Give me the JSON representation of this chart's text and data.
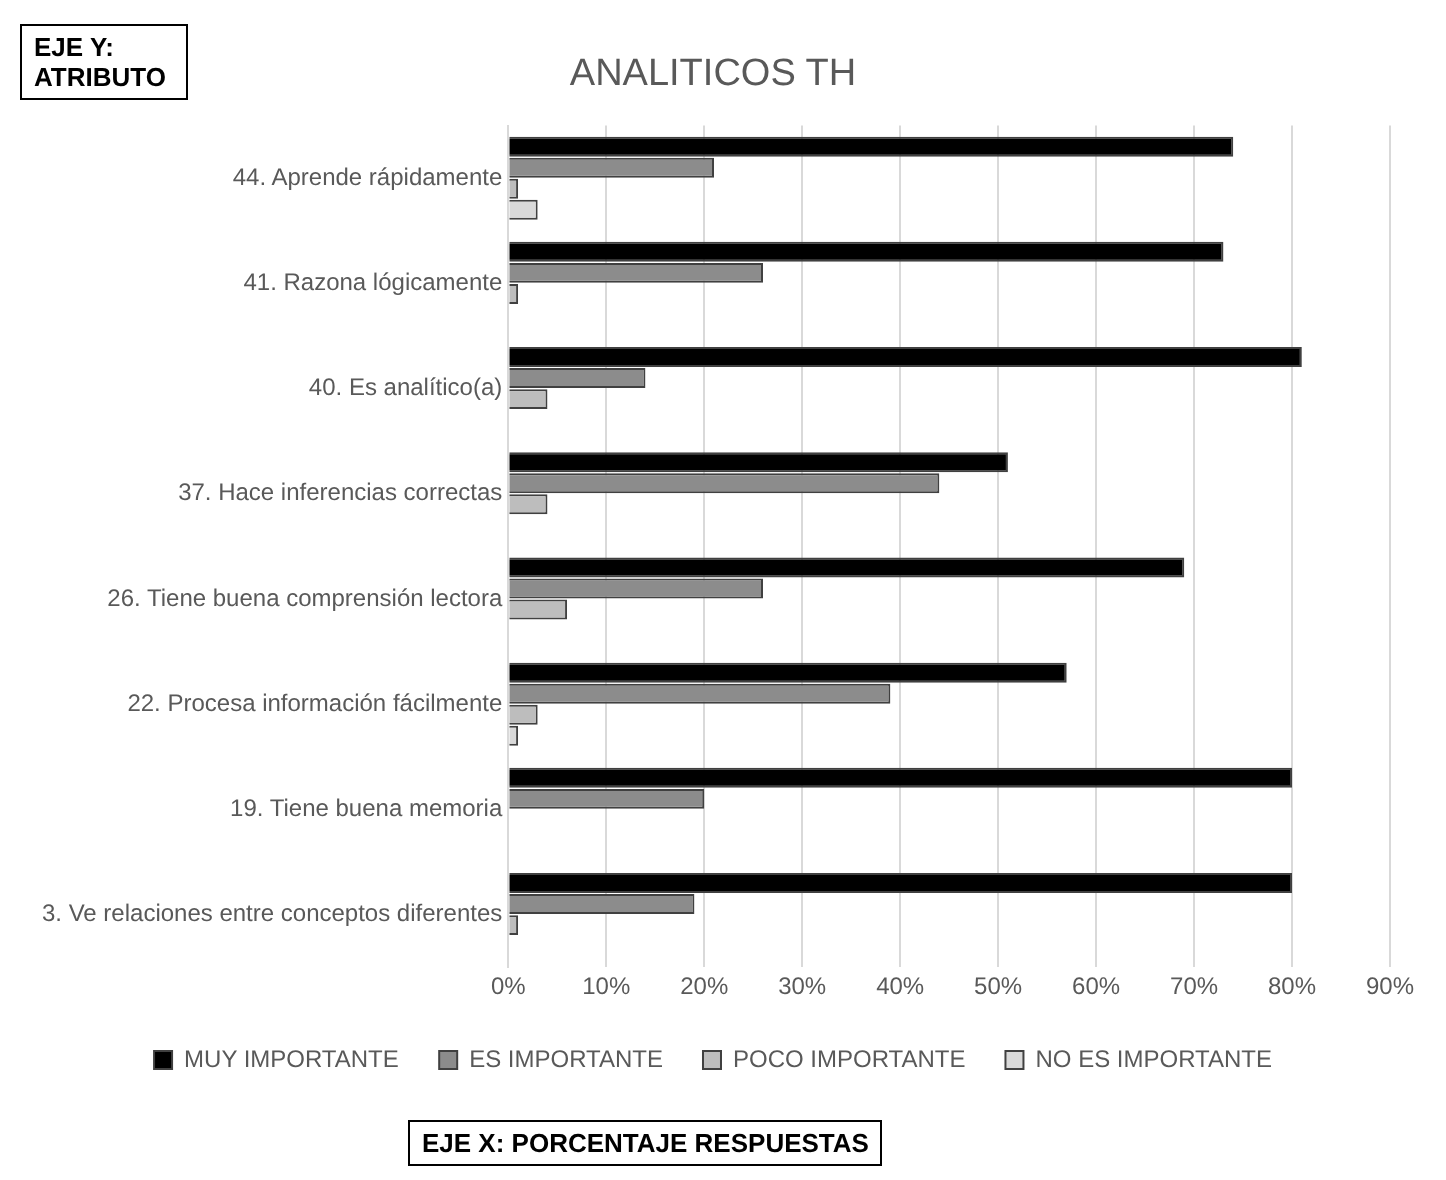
{
  "chart_data": {
    "type": "bar",
    "orientation": "horizontal",
    "title": "ANALITICOS TH",
    "xlabel": "EJE X: PORCENTAJE RESPUESTAS",
    "ylabel": "EJE Y: ATRIBUTO",
    "categories": [
      "44. Aprende rápidamente",
      "41. Razona lógicamente",
      "40. Es analítico(a)",
      "37. Hace inferencias correctas",
      "26. Tiene buena comprensión lectora",
      "22. Procesa información fácilmente",
      "19. Tiene buena memoria",
      "3. Ve relaciones entre conceptos diferentes"
    ],
    "series": [
      {
        "name": "MUY IMPORTANTE",
        "color": "#000000",
        "values": [
          74,
          73,
          81,
          51,
          69,
          57,
          80,
          80
        ]
      },
      {
        "name": "ES IMPORTANTE",
        "color": "#8c8c8c",
        "values": [
          21,
          26,
          14,
          44,
          26,
          39,
          20,
          19
        ]
      },
      {
        "name": "POCO IMPORTANTE",
        "color": "#bdbdbd",
        "values": [
          1,
          1,
          4,
          4,
          6,
          3,
          null,
          1
        ]
      },
      {
        "name": "NO ES IMPORTANTE",
        "color": "#d9d9d9",
        "values": [
          3,
          null,
          null,
          null,
          null,
          1,
          null,
          null
        ]
      }
    ],
    "xlim": [
      0,
      90
    ],
    "xticks": [
      {
        "value": 0,
        "label": "0%"
      },
      {
        "value": 10,
        "label": "10%"
      },
      {
        "value": 20,
        "label": "20%"
      },
      {
        "value": 30,
        "label": "30%"
      },
      {
        "value": 40,
        "label": "40%"
      },
      {
        "value": 50,
        "label": "50%"
      },
      {
        "value": 60,
        "label": "60%"
      },
      {
        "value": 70,
        "label": "70%"
      },
      {
        "value": 80,
        "label": "80%"
      },
      {
        "value": 90,
        "label": "90%"
      }
    ],
    "grid": "x",
    "legend": "bottom"
  }
}
